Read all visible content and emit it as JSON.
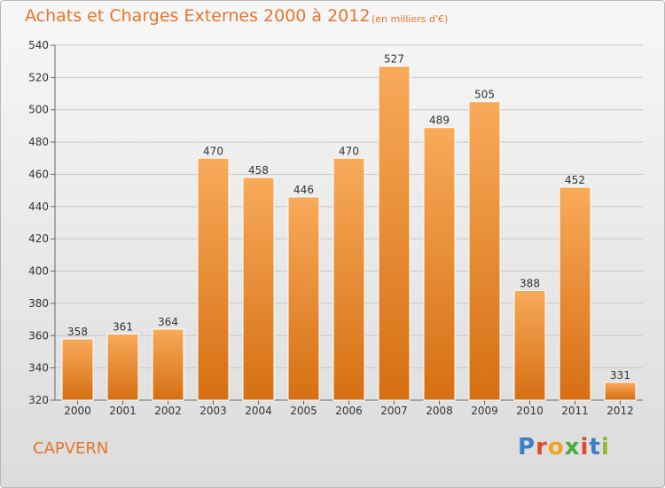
{
  "header": {
    "title": "Achats et Charges Externes 2000 à 2012",
    "unit": "(en milliers d'€)"
  },
  "footer": {
    "commune": "CAPVERN",
    "logo_letters": [
      "P",
      "r",
      "o",
      "x",
      "i",
      "t",
      "i"
    ],
    "logo_colors": [
      "#3a7fc8",
      "#e04a2a",
      "#f2a21b",
      "#4ba83a",
      "#e04a2a",
      "#3a7fc8",
      "#8dbb2d"
    ]
  },
  "colors": {
    "bar_top": "#f8aa5a",
    "bar_bottom": "#d66f12",
    "text": "#e8742c"
  },
  "chart_data": {
    "type": "bar",
    "categories": [
      "2000",
      "2001",
      "2002",
      "2003",
      "2004",
      "2005",
      "2006",
      "2007",
      "2008",
      "2009",
      "2010",
      "2011",
      "2012"
    ],
    "values": [
      358,
      361,
      364,
      470,
      458,
      446,
      470,
      527,
      489,
      505,
      388,
      452,
      331
    ],
    "ylim": [
      320,
      540
    ],
    "yticks": [
      320,
      340,
      360,
      380,
      400,
      420,
      440,
      460,
      480,
      500,
      520,
      540
    ],
    "grid": true
  }
}
